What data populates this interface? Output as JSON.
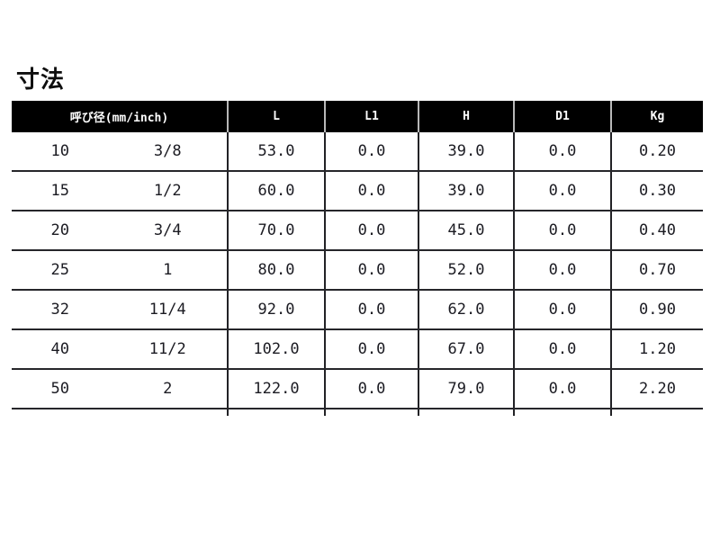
{
  "page": {
    "title": "寸法"
  },
  "table": {
    "header": {
      "nominal": "呼び径(mm/inch)",
      "l": "L",
      "l1": "L1",
      "h": "H",
      "d1": "D1",
      "kg": "Kg"
    },
    "rows": [
      {
        "mm": "10",
        "inch": "3/8",
        "l": "53.0",
        "l1": "0.0",
        "h": "39.0",
        "d1": "0.0",
        "kg": "0.20"
      },
      {
        "mm": "15",
        "inch": "1/2",
        "l": "60.0",
        "l1": "0.0",
        "h": "39.0",
        "d1": "0.0",
        "kg": "0.30"
      },
      {
        "mm": "20",
        "inch": "3/4",
        "l": "70.0",
        "l1": "0.0",
        "h": "45.0",
        "d1": "0.0",
        "kg": "0.40"
      },
      {
        "mm": "25",
        "inch": "1",
        "l": "80.0",
        "l1": "0.0",
        "h": "52.0",
        "d1": "0.0",
        "kg": "0.70"
      },
      {
        "mm": "32",
        "inch": "11/4",
        "l": "92.0",
        "l1": "0.0",
        "h": "62.0",
        "d1": "0.0",
        "kg": "0.90"
      },
      {
        "mm": "40",
        "inch": "11/2",
        "l": "102.0",
        "l1": "0.0",
        "h": "67.0",
        "d1": "0.0",
        "kg": "1.20"
      },
      {
        "mm": "50",
        "inch": "2",
        "l": "122.0",
        "l1": "0.0",
        "h": "79.0",
        "d1": "0.0",
        "kg": "2.20"
      }
    ]
  },
  "colors": {
    "header_bg": "#000000",
    "header_text": "#ffffff",
    "body_text": "#1b1b22",
    "grid_line": "#222226",
    "header_divider": "#b8b8b8"
  }
}
